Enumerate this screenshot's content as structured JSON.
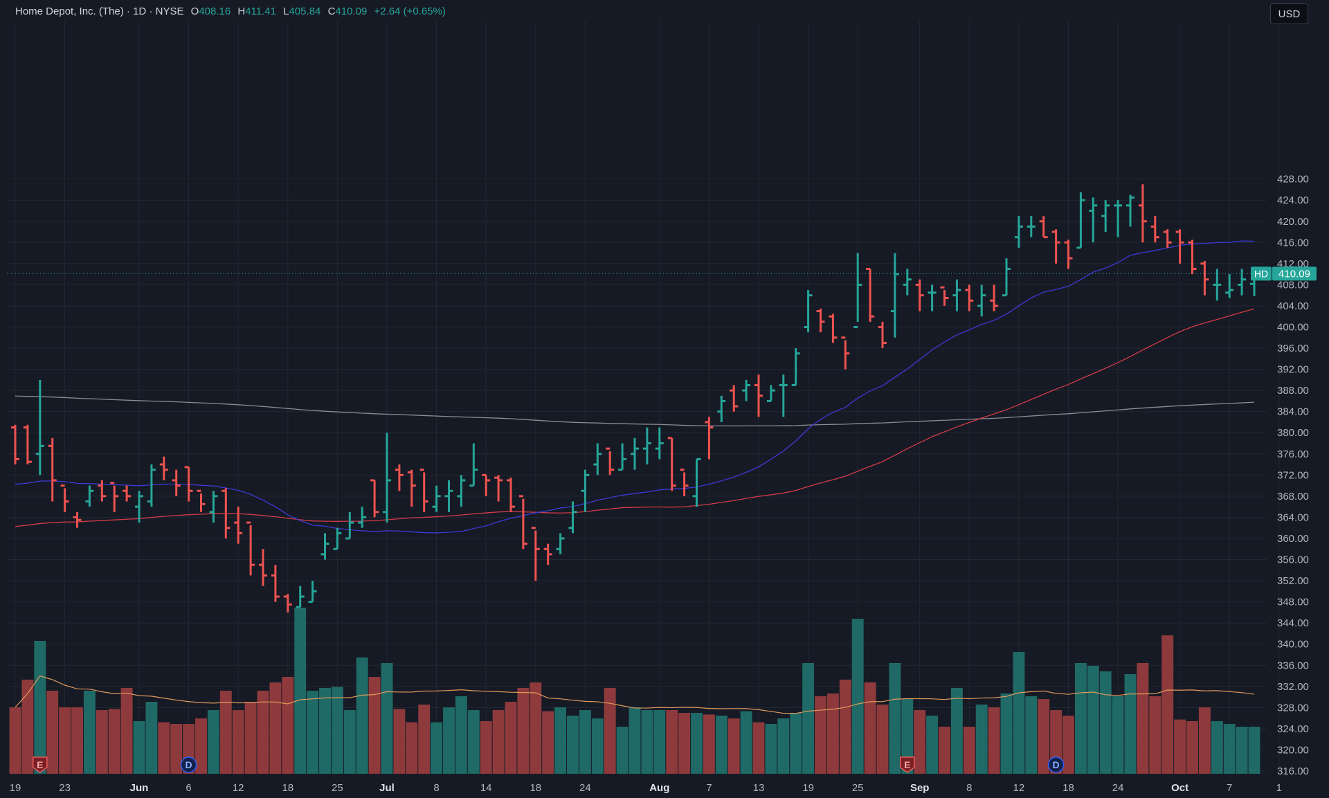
{
  "header": {
    "symbol_name": "Home Depot, Inc. (The)",
    "interval": "1D",
    "exchange": "NYSE",
    "sep": "·",
    "o_label": "O",
    "o_value": "408.16",
    "h_label": "H",
    "h_value": "411.41",
    "l_label": "L",
    "l_value": "405.84",
    "c_label": "C",
    "c_value": "410.09",
    "change": "+2.64 (+0.65%)"
  },
  "currency_button": "USD",
  "last_price": {
    "ticker": "HD",
    "value": "410.09"
  },
  "colors": {
    "background": "#161a25",
    "up": "#26a69a",
    "down": "#ef5350",
    "volume_up": "#1f6a66",
    "volume_down": "#8e3a3c",
    "sma_short": "#3b3bd6",
    "sma_mid": "#d23c48",
    "sma_long": "#8a8d96",
    "volume_ma": "#e39a5b"
  },
  "chart_data": {
    "type": "ohlc",
    "y_ticks": [
      "316.00",
      "320.00",
      "324.00",
      "328.00",
      "332.00",
      "336.00",
      "340.00",
      "344.00",
      "348.00",
      "352.00",
      "356.00",
      "360.00",
      "364.00",
      "368.00",
      "372.00",
      "376.00",
      "380.00",
      "384.00",
      "388.00",
      "392.00",
      "396.00",
      "400.00",
      "404.00",
      "408.00",
      "412.00",
      "416.00",
      "420.00",
      "424.00",
      "428.00"
    ],
    "x_ticks": [
      {
        "label": "19",
        "bold": false,
        "i": 0
      },
      {
        "label": "23",
        "bold": false,
        "i": 4
      },
      {
        "label": "Jun",
        "bold": true,
        "i": 10
      },
      {
        "label": "6",
        "bold": false,
        "i": 14
      },
      {
        "label": "12",
        "bold": false,
        "i": 18
      },
      {
        "label": "18",
        "bold": false,
        "i": 22
      },
      {
        "label": "25",
        "bold": false,
        "i": 26
      },
      {
        "label": "Jul",
        "bold": true,
        "i": 30
      },
      {
        "label": "8",
        "bold": false,
        "i": 34
      },
      {
        "label": "14",
        "bold": false,
        "i": 38
      },
      {
        "label": "18",
        "bold": false,
        "i": 42
      },
      {
        "label": "24",
        "bold": false,
        "i": 46
      },
      {
        "label": "Aug",
        "bold": true,
        "i": 52
      },
      {
        "label": "7",
        "bold": false,
        "i": 56
      },
      {
        "label": "13",
        "bold": false,
        "i": 60
      },
      {
        "label": "19",
        "bold": false,
        "i": 64
      },
      {
        "label": "25",
        "bold": false,
        "i": 68
      },
      {
        "label": "Sep",
        "bold": true,
        "i": 73
      },
      {
        "label": "8",
        "bold": false,
        "i": 77
      },
      {
        "label": "12",
        "bold": false,
        "i": 81
      },
      {
        "label": "18",
        "bold": false,
        "i": 85
      },
      {
        "label": "24",
        "bold": false,
        "i": 89
      },
      {
        "label": "Oct",
        "bold": true,
        "i": 94
      },
      {
        "label": "7",
        "bold": false,
        "i": 98
      },
      {
        "label": "1",
        "bold": false,
        "i": 102
      }
    ],
    "y_range": [
      315,
      429
    ],
    "bars": [
      {
        "o": 381,
        "h": 381.5,
        "l": 374,
        "c": 375,
        "v": 326
      },
      {
        "o": 381,
        "h": 381.5,
        "l": 374,
        "c": 374.5,
        "v": 331
      },
      {
        "o": 376,
        "h": 390,
        "l": 372,
        "c": 377.5,
        "v": 338
      },
      {
        "o": 377.5,
        "h": 379,
        "l": 367,
        "c": 371,
        "v": 329
      },
      {
        "o": 370,
        "h": 369.5,
        "l": 365,
        "c": 367,
        "v": 326
      },
      {
        "o": 364,
        "h": 365,
        "l": 362,
        "c": 363.5,
        "v": 326
      },
      {
        "o": 367,
        "h": 370,
        "l": 366,
        "c": 369,
        "v": 329
      },
      {
        "o": 370,
        "h": 371,
        "l": 367,
        "c": 368,
        "v": 325.5
      },
      {
        "o": 370.5,
        "h": 370,
        "l": 365,
        "c": 368,
        "v": 325.7
      },
      {
        "o": 369,
        "h": 370,
        "l": 367,
        "c": 368,
        "v": 329.5
      },
      {
        "o": 366,
        "h": 369,
        "l": 363,
        "c": 368,
        "v": 323.5
      },
      {
        "o": 367,
        "h": 374,
        "l": 366,
        "c": 373,
        "v": 327
      },
      {
        "o": 374,
        "h": 375.5,
        "l": 371,
        "c": 373,
        "v": 323.3
      },
      {
        "o": 371,
        "h": 373,
        "l": 368,
        "c": 370,
        "v": 323
      },
      {
        "o": 373.5,
        "h": 373.5,
        "l": 367,
        "c": 369,
        "v": 323
      },
      {
        "o": 369,
        "h": 368.5,
        "l": 365,
        "c": 366.5,
        "v": 324
      },
      {
        "o": 365,
        "h": 369,
        "l": 363,
        "c": 368,
        "v": 325.5
      },
      {
        "o": 369,
        "h": 369.5,
        "l": 360,
        "c": 362,
        "v": 329
      },
      {
        "o": 363,
        "h": 366,
        "l": 359,
        "c": 361,
        "v": 325.5
      },
      {
        "o": 363,
        "h": 362.5,
        "l": 353,
        "c": 355,
        "v": 327
      },
      {
        "o": 355,
        "h": 358,
        "l": 351,
        "c": 353,
        "v": 329
      },
      {
        "o": 353,
        "h": 355,
        "l": 348,
        "c": 349,
        "v": 330.5
      },
      {
        "o": 349,
        "h": 349.5,
        "l": 346,
        "c": 347.5,
        "v": 331.5
      },
      {
        "o": 347,
        "h": 351,
        "l": 347,
        "c": 349,
        "v": 344
      },
      {
        "o": 348,
        "h": 352,
        "l": 348,
        "c": 350,
        "v": 329
      },
      {
        "o": 357,
        "h": 361,
        "l": 356,
        "c": 359,
        "v": 329.5
      },
      {
        "o": 358,
        "h": 362,
        "l": 358,
        "c": 361,
        "v": 329.7
      },
      {
        "o": 360,
        "h": 365,
        "l": 360,
        "c": 363,
        "v": 325.5
      },
      {
        "o": 363,
        "h": 366,
        "l": 362,
        "c": 364,
        "v": 335
      },
      {
        "o": 371,
        "h": 371,
        "l": 364,
        "c": 365,
        "v": 331.5
      },
      {
        "o": 365,
        "h": 380,
        "l": 363,
        "c": 371,
        "v": 334
      },
      {
        "o": 373,
        "h": 374,
        "l": 369,
        "c": 372,
        "v": 325.7
      },
      {
        "o": 372.5,
        "h": 373,
        "l": 366,
        "c": 370,
        "v": 323.3
      },
      {
        "o": 373,
        "h": 372.5,
        "l": 365,
        "c": 367,
        "v": 326.5
      },
      {
        "o": 366,
        "h": 370,
        "l": 365,
        "c": 368,
        "v": 323.3
      },
      {
        "o": 368,
        "h": 371,
        "l": 365,
        "c": 369,
        "v": 326
      },
      {
        "o": 368,
        "h": 372,
        "l": 366,
        "c": 371,
        "v": 328
      },
      {
        "o": 370,
        "h": 378,
        "l": 370,
        "c": 373,
        "v": 325.5
      },
      {
        "o": 372,
        "h": 372,
        "l": 368,
        "c": 371,
        "v": 323.5
      },
      {
        "o": 371.5,
        "h": 372,
        "l": 367,
        "c": 371,
        "v": 325.5
      },
      {
        "o": 371,
        "h": 371.5,
        "l": 365,
        "c": 366,
        "v": 327
      },
      {
        "o": 368,
        "h": 367.5,
        "l": 358,
        "c": 359,
        "v": 329.5
      },
      {
        "o": 362,
        "h": 361.5,
        "l": 352,
        "c": 358,
        "v": 330.5
      },
      {
        "o": 358,
        "h": 359,
        "l": 355,
        "c": 357,
        "v": 325.3
      },
      {
        "o": 358,
        "h": 361,
        "l": 357,
        "c": 360,
        "v": 326
      },
      {
        "o": 362,
        "h": 367,
        "l": 361,
        "c": 365,
        "v": 324.5
      },
      {
        "o": 369,
        "h": 373,
        "l": 365,
        "c": 372,
        "v": 325.5
      },
      {
        "o": 374,
        "h": 378,
        "l": 372,
        "c": 376,
        "v": 324
      },
      {
        "o": 377,
        "h": 376.5,
        "l": 372,
        "c": 373,
        "v": 329.5
      },
      {
        "o": 373,
        "h": 378,
        "l": 373,
        "c": 375,
        "v": 322.5
      },
      {
        "o": 376,
        "h": 379,
        "l": 373,
        "c": 377,
        "v": 326
      },
      {
        "o": 377,
        "h": 381,
        "l": 374,
        "c": 378,
        "v": 325.5
      },
      {
        "o": 377,
        "h": 381,
        "l": 375,
        "c": 378,
        "v": 325.5
      },
      {
        "o": 379,
        "h": 379,
        "l": 369,
        "c": 370,
        "v": 325.5
      },
      {
        "o": 373,
        "h": 372.5,
        "l": 368,
        "c": 370,
        "v": 325
      },
      {
        "o": 368,
        "h": 375,
        "l": 366,
        "c": 375,
        "v": 325
      },
      {
        "o": 382,
        "h": 383,
        "l": 375,
        "c": 381,
        "v": 324.7
      },
      {
        "o": 384,
        "h": 387,
        "l": 382,
        "c": 386,
        "v": 324.5
      },
      {
        "o": 388,
        "h": 389,
        "l": 384,
        "c": 385,
        "v": 324
      },
      {
        "o": 388,
        "h": 390,
        "l": 386,
        "c": 389,
        "v": 325.3
      },
      {
        "o": 389,
        "h": 391,
        "l": 383,
        "c": 387,
        "v": 323.3
      },
      {
        "o": 386,
        "h": 389,
        "l": 386,
        "c": 388,
        "v": 323
      },
      {
        "o": 389,
        "h": 391,
        "l": 383,
        "c": 389,
        "v": 324
      },
      {
        "o": 389,
        "h": 396,
        "l": 389,
        "c": 395,
        "v": 325
      },
      {
        "o": 400,
        "h": 407,
        "l": 399,
        "c": 406,
        "v": 334
      },
      {
        "o": 403,
        "h": 403.5,
        "l": 399,
        "c": 401,
        "v": 328
      },
      {
        "o": 402,
        "h": 402.5,
        "l": 397,
        "c": 398,
        "v": 328.5
      },
      {
        "o": 398,
        "h": 397.5,
        "l": 392,
        "c": 395,
        "v": 331
      },
      {
        "o": 400,
        "h": 414,
        "l": 401,
        "c": 408,
        "v": 342
      },
      {
        "o": 411,
        "h": 411,
        "l": 401,
        "c": 402,
        "v": 330.5
      },
      {
        "o": 400,
        "h": 401,
        "l": 396,
        "c": 397,
        "v": 326.5
      },
      {
        "o": 403,
        "h": 414,
        "l": 398,
        "c": 410,
        "v": 334
      },
      {
        "o": 408,
        "h": 411,
        "l": 406,
        "c": 409,
        "v": 327.5
      },
      {
        "o": 408,
        "h": 409,
        "l": 403,
        "c": 406,
        "v": 325.5
      },
      {
        "o": 406.5,
        "h": 408,
        "l": 403,
        "c": 406.5,
        "v": 324.5
      },
      {
        "o": 407.5,
        "h": 407,
        "l": 404,
        "c": 405.5,
        "v": 322.5
      },
      {
        "o": 406,
        "h": 409,
        "l": 403,
        "c": 407,
        "v": 329.5
      },
      {
        "o": 407,
        "h": 408,
        "l": 403,
        "c": 405,
        "v": 322.5
      },
      {
        "o": 404,
        "h": 408,
        "l": 402,
        "c": 406,
        "v": 326.5
      },
      {
        "o": 405,
        "h": 408,
        "l": 403,
        "c": 404,
        "v": 326
      },
      {
        "o": 406,
        "h": 413,
        "l": 406,
        "c": 411,
        "v": 328.5
      },
      {
        "o": 417,
        "h": 421,
        "l": 415,
        "c": 419,
        "v": 336
      },
      {
        "o": 419,
        "h": 421,
        "l": 417,
        "c": 419,
        "v": 328
      },
      {
        "o": 420,
        "h": 421,
        "l": 417,
        "c": 417,
        "v": 327.5
      },
      {
        "o": 418,
        "h": 418.5,
        "l": 412,
        "c": 416,
        "v": 325.5
      },
      {
        "o": 416,
        "h": 416.5,
        "l": 411,
        "c": 413,
        "v": 324.5
      },
      {
        "o": 415,
        "h": 425.5,
        "l": 415,
        "c": 424,
        "v": 334
      },
      {
        "o": 422,
        "h": 424.5,
        "l": 416,
        "c": 423,
        "v": 333.5
      },
      {
        "o": 421,
        "h": 424,
        "l": 418,
        "c": 423,
        "v": 332.5
      },
      {
        "o": 423,
        "h": 424,
        "l": 417,
        "c": 423,
        "v": 328
      },
      {
        "o": 423,
        "h": 425,
        "l": 419,
        "c": 424.5,
        "v": 332
      },
      {
        "o": 423,
        "h": 427,
        "l": 416,
        "c": 420,
        "v": 334
      },
      {
        "o": 419,
        "h": 421,
        "l": 416,
        "c": 417,
        "v": 328
      },
      {
        "o": 418,
        "h": 418.5,
        "l": 415,
        "c": 416,
        "v": 339
      },
      {
        "o": 418,
        "h": 418.5,
        "l": 412,
        "c": 416,
        "v": 323.8
      },
      {
        "o": 416,
        "h": 416.5,
        "l": 410,
        "c": 411,
        "v": 323.5
      },
      {
        "o": 412,
        "h": 412.5,
        "l": 406,
        "c": 409,
        "v": 326
      },
      {
        "o": 408,
        "h": 411,
        "l": 405,
        "c": 408,
        "v": 323.5
      },
      {
        "o": 406.5,
        "h": 410,
        "l": 405.5,
        "c": 407,
        "v": 323
      },
      {
        "o": 408,
        "h": 411,
        "l": 406,
        "c": 409,
        "v": 322.5
      },
      {
        "o": 408.16,
        "h": 411.41,
        "l": 405.84,
        "c": 410.09,
        "v": 322.5
      }
    ],
    "events": [
      {
        "type": "earnings",
        "label": "E",
        "i": 2
      },
      {
        "type": "dividend",
        "label": "D",
        "i": 14
      },
      {
        "type": "earnings",
        "label": "E",
        "i": 72
      },
      {
        "type": "dividend",
        "label": "D",
        "i": 84
      }
    ]
  }
}
